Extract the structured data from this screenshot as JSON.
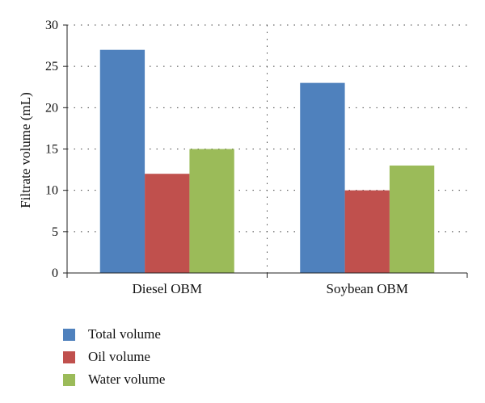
{
  "chart_data": {
    "type": "bar",
    "categories": [
      "Diesel OBM",
      "Soybean OBM"
    ],
    "series": [
      {
        "name": "Total volume",
        "values": [
          27,
          23
        ],
        "color": "#4f81bd"
      },
      {
        "name": "Oil volume",
        "values": [
          12,
          10
        ],
        "color": "#c0504d"
      },
      {
        "name": "Water volume",
        "values": [
          15,
          13
        ],
        "color": "#9bbb59"
      }
    ],
    "ylabel": "Filtrate volume (mL)",
    "xlabel": "",
    "ylim": [
      0,
      30
    ],
    "yticks": [
      0,
      5,
      10,
      15,
      20,
      25,
      30
    ],
    "grid": true,
    "legend_position": "bottom-left"
  }
}
